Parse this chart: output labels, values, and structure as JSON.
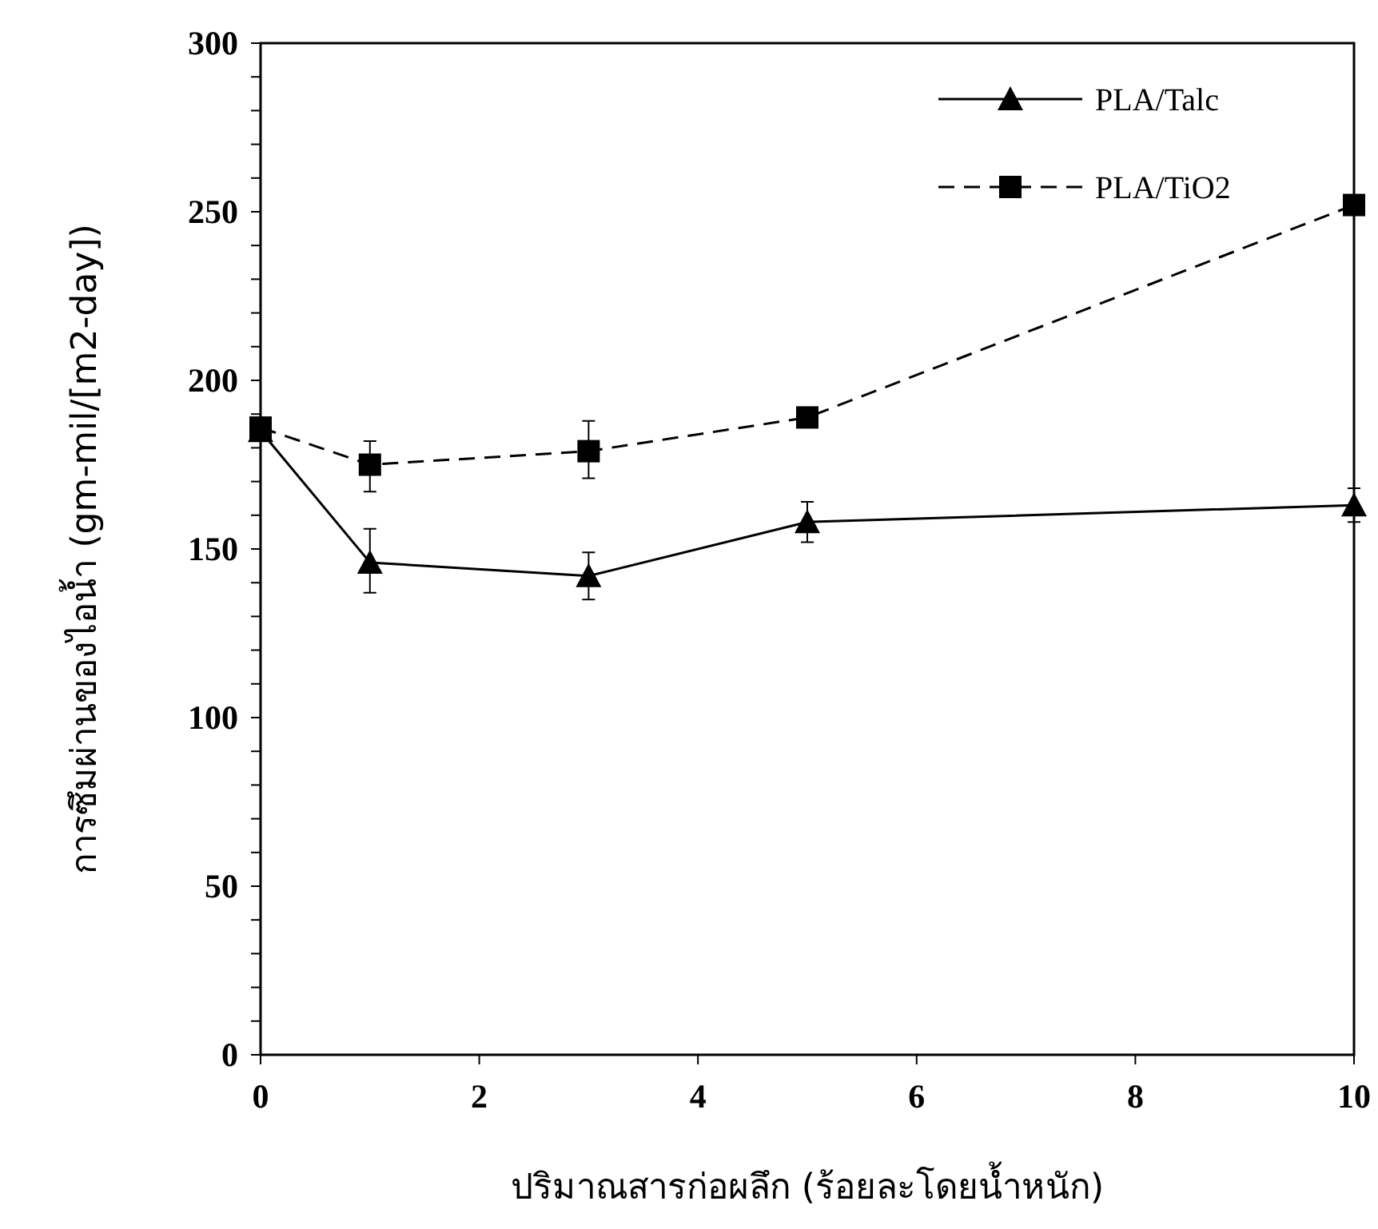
{
  "chart_data": {
    "type": "line",
    "xlabel": "ปริมาณสารก่อผลึก (ร้อยละโดยน้ำหนัก)",
    "ylabel": "การซึมผ่านของไอน้ำ (gm-mil/[m2-day])",
    "x": [
      0,
      1,
      3,
      5,
      10
    ],
    "series": [
      {
        "name": "PLA/Talc",
        "color": "#000000",
        "marker": "triangle",
        "line_style": "solid",
        "values": [
          185,
          146,
          142,
          158,
          163
        ],
        "errors": [
          null,
          [
            137,
            156
          ],
          [
            135,
            149
          ],
          [
            152,
            164
          ],
          [
            158,
            168
          ]
        ]
      },
      {
        "name": "PLA/TiO2",
        "color": "#000000",
        "marker": "square",
        "line_style": "dashed",
        "values": [
          186,
          175,
          179,
          189,
          252
        ],
        "errors": [
          null,
          [
            167,
            182
          ],
          [
            171,
            188
          ],
          null,
          null
        ]
      }
    ],
    "xlim": [
      0,
      10
    ],
    "xticks": [
      0,
      2,
      4,
      6,
      8,
      10
    ],
    "ylim": [
      0,
      300
    ],
    "yticks": [
      0,
      {
        "value": 10,
        "label": null
      },
      {
        "value": 20,
        "label": null
      },
      {
        "value": 30,
        "label": null
      },
      {
        "value": 40,
        "label": null
      },
      50,
      {
        "value": 60,
        "label": null
      },
      {
        "value": 70,
        "label": null
      },
      {
        "value": 80,
        "label": null
      },
      {
        "value": 90,
        "label": null
      },
      100,
      {
        "value": 110,
        "label": null
      },
      {
        "value": 120,
        "label": null
      },
      {
        "value": 130,
        "label": null
      },
      {
        "value": 140,
        "label": null
      },
      150,
      {
        "value": 160,
        "label": null
      },
      {
        "value": 170,
        "label": null
      },
      {
        "value": 180,
        "label": null
      },
      {
        "value": 190,
        "label": null
      },
      200,
      {
        "value": 210,
        "label": null
      },
      {
        "value": 220,
        "label": null
      },
      {
        "value": 230,
        "label": null
      },
      {
        "value": 240,
        "label": null
      },
      250,
      {
        "value": 260,
        "label": null
      },
      {
        "value": 270,
        "label": null
      },
      {
        "value": 280,
        "label": null
      },
      {
        "value": 290,
        "label": null
      },
      300
    ],
    "grid": false,
    "legend": "top right"
  }
}
